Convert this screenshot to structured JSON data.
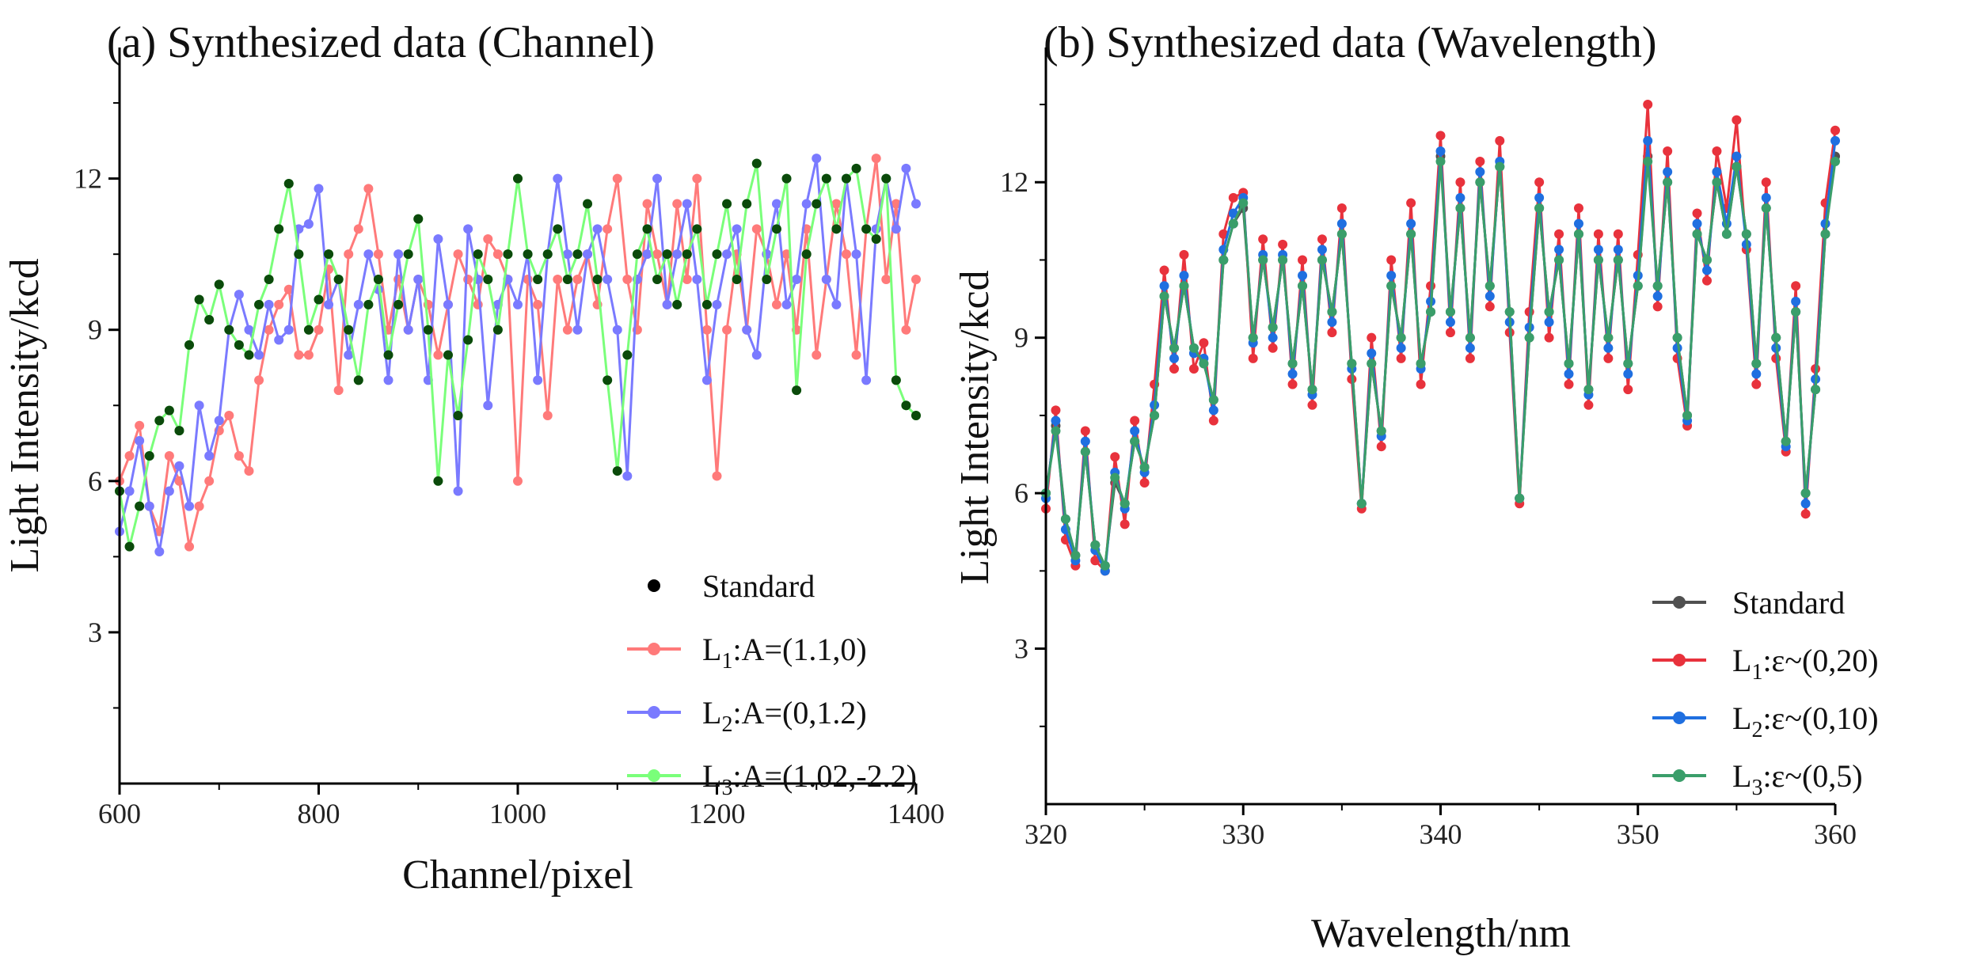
{
  "chart_data": [
    {
      "type": "line",
      "title": "(a) Synthesized data (Channel)",
      "xlabel": "Channel/pixel",
      "ylabel": "Light Intensity/kcd",
      "xlim": [
        600,
        1400
      ],
      "ylim": [
        0,
        14.6
      ],
      "xticks": [
        600,
        800,
        1000,
        1200,
        1400
      ],
      "yticks": [
        3,
        6,
        9,
        12
      ],
      "grid": false,
      "legend_position": "bottom-right",
      "x": [
        600,
        610,
        620,
        630,
        640,
        650,
        660,
        670,
        680,
        690,
        700,
        710,
        720,
        730,
        740,
        750,
        760,
        770,
        780,
        790,
        800,
        810,
        820,
        830,
        840,
        850,
        860,
        870,
        880,
        890,
        900,
        910,
        920,
        930,
        940,
        950,
        960,
        970,
        980,
        990,
        1000,
        1010,
        1020,
        1030,
        1040,
        1050,
        1060,
        1070,
        1080,
        1090,
        1100,
        1110,
        1120,
        1130,
        1140,
        1150,
        1160,
        1170,
        1180,
        1190,
        1200,
        1210,
        1220,
        1230,
        1240,
        1250,
        1260,
        1270,
        1280,
        1290,
        1300,
        1310,
        1320,
        1330,
        1340,
        1350,
        1360,
        1370,
        1380,
        1390,
        1400
      ],
      "series": [
        {
          "name": "L",
          "sub": "1",
          "rest": ":A=(1.1,0)",
          "color": "#ff7a7a",
          "marker": "line-dot",
          "values": [
            6.0,
            6.5,
            7.1,
            5.5,
            5.0,
            6.5,
            6.0,
            4.7,
            5.5,
            6.0,
            7.0,
            7.3,
            6.5,
            6.2,
            8.0,
            9.0,
            9.5,
            9.8,
            8.5,
            8.5,
            9.0,
            10.2,
            7.8,
            10.5,
            11.0,
            11.8,
            10.5,
            9.0,
            10.0,
            9.0,
            10.0,
            9.5,
            8.5,
            9.5,
            10.5,
            10.0,
            9.5,
            10.8,
            10.5,
            10.0,
            6.0,
            10.0,
            9.5,
            7.3,
            10.0,
            9.0,
            10.0,
            10.5,
            9.5,
            11.0,
            12.0,
            10.0,
            9.0,
            11.5,
            10.5,
            9.5,
            11.5,
            10.0,
            12.0,
            9.0,
            6.1,
            9.0,
            10.5,
            9.0,
            11.0,
            10.5,
            9.5,
            10.5,
            9.0,
            11.0,
            8.5,
            10.0,
            11.5,
            10.5,
            8.5,
            11.0,
            12.4,
            10.0,
            11.5,
            9.0,
            10.0
          ]
        },
        {
          "name": "L",
          "sub": "2",
          "rest": ":A=(0,1.2)",
          "color": "#7a7aff",
          "marker": "line-dot",
          "values": [
            5.0,
            5.8,
            6.8,
            5.5,
            4.6,
            5.8,
            6.3,
            5.5,
            7.5,
            6.5,
            7.2,
            9.0,
            9.7,
            9.0,
            8.5,
            9.5,
            8.8,
            9.0,
            11.0,
            11.1,
            11.8,
            9.5,
            10.0,
            8.5,
            9.5,
            10.5,
            9.8,
            8.0,
            10.5,
            9.0,
            10.0,
            8.0,
            10.8,
            9.5,
            5.8,
            11.0,
            10.0,
            7.5,
            9.5,
            10.0,
            9.5,
            10.5,
            8.0,
            10.5,
            12.0,
            10.5,
            9.0,
            10.5,
            11.0,
            10.0,
            9.0,
            6.1,
            10.0,
            10.5,
            12.0,
            9.5,
            10.5,
            11.5,
            10.0,
            8.0,
            9.5,
            10.5,
            11.0,
            9.0,
            8.5,
            10.5,
            11.5,
            9.5,
            10.0,
            11.5,
            12.4,
            10.0,
            9.5,
            12.0,
            10.5,
            8.0,
            11.0,
            12.0,
            11.0,
            12.2,
            11.5
          ]
        },
        {
          "name": "L",
          "sub": "3",
          "rest": ":A=(1.02,-2.2)",
          "color": "#7aff7a",
          "marker": "line-dot",
          "values": [
            5.8,
            4.7,
            5.5,
            6.5,
            7.2,
            7.4,
            7.0,
            8.7,
            9.6,
            9.2,
            9.9,
            9.0,
            8.7,
            8.5,
            9.5,
            10.0,
            11.0,
            11.9,
            10.5,
            9.0,
            9.6,
            10.5,
            10.0,
            9.0,
            8.0,
            9.5,
            10.0,
            8.5,
            9.5,
            10.5,
            11.2,
            9.0,
            6.0,
            8.5,
            7.3,
            8.8,
            10.5,
            10.0,
            9.0,
            10.5,
            12.0,
            10.5,
            10.0,
            10.5,
            11.0,
            10.0,
            10.5,
            11.5,
            10.0,
            8.0,
            6.2,
            8.5,
            10.5,
            11.0,
            10.0,
            10.5,
            9.5,
            10.5,
            11.0,
            9.5,
            10.5,
            11.5,
            10.0,
            11.5,
            12.3,
            10.0,
            11.0,
            12.0,
            7.8,
            10.5,
            11.5,
            12.0,
            11.0,
            12.0,
            12.2,
            11.0,
            10.8,
            12.0,
            8.0,
            7.5,
            7.3
          ]
        },
        {
          "name": "Standard",
          "sub": "",
          "rest": "",
          "color": "#0b4a0b",
          "marker": "dot",
          "values": [
            5.8,
            4.7,
            5.5,
            6.5,
            7.2,
            7.4,
            7.0,
            8.7,
            9.6,
            9.2,
            9.9,
            9.0,
            8.7,
            8.5,
            9.5,
            10.0,
            11.0,
            11.9,
            10.5,
            9.0,
            9.6,
            10.5,
            10.0,
            9.0,
            8.0,
            9.5,
            10.0,
            8.5,
            9.5,
            10.5,
            11.2,
            9.0,
            6.0,
            8.5,
            7.3,
            8.8,
            10.5,
            10.0,
            9.0,
            10.5,
            12.0,
            10.5,
            10.0,
            10.5,
            11.0,
            10.0,
            10.5,
            11.5,
            10.0,
            8.0,
            6.2,
            8.5,
            10.5,
            11.0,
            10.0,
            10.5,
            9.5,
            10.5,
            11.0,
            9.5,
            10.5,
            11.5,
            10.0,
            11.5,
            12.3,
            10.0,
            11.0,
            12.0,
            7.8,
            10.5,
            11.5,
            12.0,
            11.0,
            12.0,
            12.2,
            11.0,
            10.8,
            12.0,
            8.0,
            7.5,
            7.3
          ]
        }
      ],
      "legend_order": [
        3,
        0,
        1,
        2
      ]
    },
    {
      "type": "line",
      "title": "(b) Synthesized data (Wavelength)",
      "xlabel": "Wavelength/nm",
      "ylabel": "Light Intensity/kcd",
      "xlim": [
        320,
        360
      ],
      "ylim": [
        0,
        14.6
      ],
      "xticks": [
        320,
        330,
        340,
        350,
        360
      ],
      "yticks": [
        3,
        6,
        9,
        12
      ],
      "grid": false,
      "legend_position": "bottom-right",
      "x_start": 320,
      "x_step": 0.5,
      "series": [
        {
          "name": "Standard",
          "sub": "",
          "rest": "",
          "color": "#505050",
          "marker": "line-dot",
          "values": [
            6.0,
            7.3,
            5.5,
            4.8,
            6.8,
            5.0,
            4.6,
            6.2,
            5.8,
            7.0,
            6.5,
            7.5,
            9.8,
            8.8,
            10.0,
            8.8,
            8.5,
            7.8,
            10.5,
            11.2,
            11.5,
            9.0,
            10.5,
            9.2,
            10.5,
            8.5,
            10.0,
            8.0,
            10.5,
            9.5,
            11.0,
            8.5,
            5.8,
            8.5,
            7.2,
            10.0,
            9.0,
            11.0,
            8.5,
            9.5,
            12.5,
            9.5,
            11.5,
            9.0,
            12.0,
            10.0,
            12.3,
            9.5,
            5.9,
            9.0,
            11.5,
            9.5,
            10.5,
            8.5,
            11.0,
            8.0,
            10.5,
            9.0,
            10.5,
            8.5,
            10.0,
            12.5,
            10.0,
            12.0,
            9.0,
            7.5,
            11.0,
            10.5,
            12.0,
            11.0,
            12.3,
            11.0,
            8.5,
            11.5,
            9.0,
            7.0,
            9.5,
            6.0,
            8.0,
            11.0,
            12.5
          ]
        },
        {
          "name": "L",
          "sub": "1",
          "rest": ":ε~(0,20)",
          "color": "#e8323c",
          "marker": "line-dot",
          "values": [
            5.7,
            7.6,
            5.1,
            4.6,
            7.2,
            4.7,
            4.5,
            6.7,
            5.4,
            7.4,
            6.2,
            8.1,
            10.3,
            8.4,
            10.6,
            8.4,
            8.9,
            7.4,
            11.0,
            11.7,
            11.8,
            8.6,
            10.9,
            8.8,
            10.8,
            8.1,
            10.5,
            7.7,
            10.9,
            9.1,
            11.5,
            8.2,
            5.7,
            9.0,
            6.9,
            10.5,
            8.6,
            11.6,
            8.1,
            10.0,
            12.9,
            9.1,
            12.0,
            8.6,
            12.4,
            9.6,
            12.8,
            9.1,
            5.8,
            9.5,
            12.0,
            9.0,
            11.0,
            8.1,
            11.5,
            7.7,
            11.0,
            8.6,
            11.0,
            8.0,
            10.6,
            13.5,
            9.6,
            12.6,
            8.6,
            7.3,
            11.4,
            10.1,
            12.6,
            11.5,
            13.2,
            10.7,
            8.1,
            12.0,
            8.6,
            6.8,
            10.0,
            5.6,
            8.4,
            11.6,
            13.0
          ]
        },
        {
          "name": "L",
          "sub": "2",
          "rest": ":ε~(0,10)",
          "color": "#1f6fe0",
          "marker": "line-dot",
          "values": [
            5.9,
            7.4,
            5.3,
            4.7,
            7.0,
            4.9,
            4.5,
            6.4,
            5.7,
            7.2,
            6.4,
            7.7,
            10.0,
            8.6,
            10.2,
            8.7,
            8.6,
            7.6,
            10.7,
            11.4,
            11.7,
            8.9,
            10.6,
            9.0,
            10.6,
            8.3,
            10.2,
            7.9,
            10.7,
            9.3,
            11.2,
            8.4,
            5.8,
            8.7,
            7.1,
            10.2,
            8.8,
            11.2,
            8.4,
            9.7,
            12.6,
            9.3,
            11.7,
            8.8,
            12.2,
            9.8,
            12.4,
            9.3,
            5.9,
            9.2,
            11.7,
            9.3,
            10.7,
            8.3,
            11.2,
            7.9,
            10.7,
            8.8,
            10.7,
            8.3,
            10.2,
            12.8,
            9.8,
            12.2,
            8.8,
            7.4,
            11.2,
            10.3,
            12.2,
            11.2,
            12.5,
            10.8,
            8.3,
            11.7,
            8.8,
            6.9,
            9.7,
            5.8,
            8.2,
            11.2,
            12.8
          ]
        },
        {
          "name": "L",
          "sub": "3",
          "rest": ":ε~(0,5)",
          "color": "#3a9e6a",
          "marker": "line-dot",
          "values": [
            6.0,
            7.2,
            5.5,
            4.8,
            6.8,
            5.0,
            4.6,
            6.3,
            5.8,
            7.0,
            6.5,
            7.5,
            9.8,
            8.8,
            10.0,
            8.8,
            8.5,
            7.8,
            10.5,
            11.2,
            11.6,
            9.0,
            10.5,
            9.2,
            10.5,
            8.5,
            10.0,
            8.0,
            10.5,
            9.5,
            11.0,
            8.5,
            5.8,
            8.5,
            7.2,
            10.0,
            9.0,
            11.0,
            8.5,
            9.5,
            12.4,
            9.5,
            11.5,
            9.0,
            12.0,
            10.0,
            12.3,
            9.5,
            5.9,
            9.0,
            11.5,
            9.5,
            10.5,
            8.5,
            11.0,
            8.0,
            10.5,
            9.0,
            10.5,
            8.5,
            10.0,
            12.4,
            10.0,
            12.0,
            9.0,
            7.5,
            11.0,
            10.5,
            12.0,
            11.0,
            12.3,
            11.0,
            8.5,
            11.5,
            9.0,
            7.0,
            9.5,
            6.0,
            8.0,
            11.0,
            12.4
          ]
        }
      ],
      "legend_order": [
        0,
        1,
        2,
        3
      ]
    }
  ]
}
